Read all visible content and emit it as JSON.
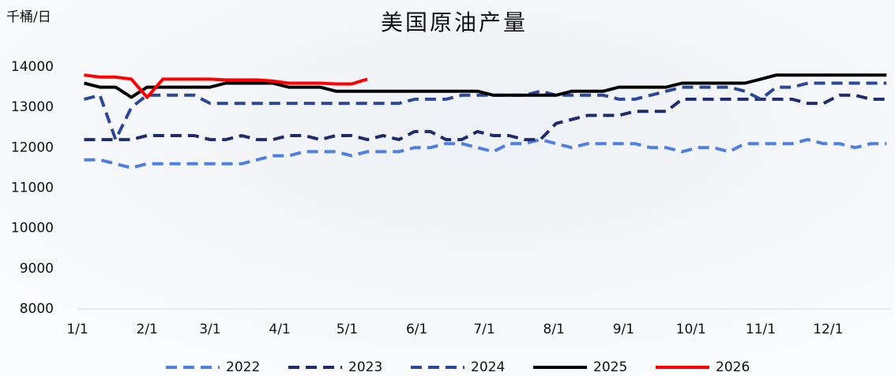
{
  "chart_data": {
    "type": "line",
    "title": "美国原油产量",
    "y_label": "千桶/日",
    "x": [
      3,
      10,
      17,
      24,
      31,
      38,
      45,
      52,
      59,
      66,
      73,
      80,
      87,
      94,
      101,
      108,
      115,
      122,
      129,
      136,
      143,
      150,
      157,
      164,
      171,
      178,
      185,
      192,
      199,
      206,
      213,
      220,
      227,
      234,
      241,
      248,
      255,
      262,
      269,
      276,
      283,
      290,
      297,
      304,
      311,
      318,
      325,
      332,
      339,
      346,
      353,
      360
    ],
    "xlim": [
      0,
      362
    ],
    "xticks": [
      {
        "value": 0,
        "label": "1/1"
      },
      {
        "value": 31,
        "label": "2/1"
      },
      {
        "value": 59,
        "label": "3/1"
      },
      {
        "value": 90,
        "label": "4/1"
      },
      {
        "value": 120,
        "label": "5/1"
      },
      {
        "value": 151,
        "label": "6/1"
      },
      {
        "value": 181,
        "label": "7/1"
      },
      {
        "value": 212,
        "label": "8/1"
      },
      {
        "value": 243,
        "label": "9/1"
      },
      {
        "value": 273,
        "label": "10/1"
      },
      {
        "value": 304,
        "label": "11/1"
      },
      {
        "value": 334,
        "label": "12/1"
      }
    ],
    "ylim": [
      8000,
      14000
    ],
    "yticks": [
      8000,
      9000,
      10000,
      11000,
      12000,
      13000,
      14000
    ],
    "legend": "bottom",
    "series": [
      {
        "name": "2022",
        "color": "#4f7fdf",
        "line_style": "dashed",
        "values": [
          11700,
          11700,
          11600,
          11500,
          11600,
          11600,
          11600,
          11600,
          11600,
          11600,
          11600,
          11700,
          11800,
          11800,
          11900,
          11900,
          11900,
          11800,
          11900,
          11900,
          11900,
          12000,
          12000,
          12100,
          12100,
          12000,
          11900,
          12100,
          12100,
          12200,
          12100,
          12000,
          12100,
          12100,
          12100,
          12100,
          12000,
          12000,
          11900,
          12000,
          12000,
          11900,
          12100,
          12100,
          12100,
          12100,
          12200,
          12100,
          12100,
          12000,
          12100,
          12100
        ]
      },
      {
        "name": "2023",
        "color": "#1f2c6b",
        "line_style": "dashed",
        "values": [
          12200,
          12200,
          12200,
          12200,
          12300,
          12300,
          12300,
          12300,
          12200,
          12200,
          12300,
          12200,
          12200,
          12300,
          12300,
          12200,
          12300,
          12300,
          12200,
          12300,
          12200,
          12400,
          12400,
          12200,
          12200,
          12400,
          12300,
          12300,
          12200,
          12200,
          12600,
          12700,
          12800,
          12800,
          12800,
          12900,
          12900,
          12900,
          13200,
          13200,
          13200,
          13200,
          13200,
          13200,
          13200,
          13200,
          13100,
          13100,
          13300,
          13300,
          13200,
          13200
        ]
      },
      {
        "name": "2024",
        "color": "#2b4898",
        "line_style": "dashed",
        "values": [
          13200,
          13300,
          12200,
          13000,
          13300,
          13300,
          13300,
          13300,
          13100,
          13100,
          13100,
          13100,
          13100,
          13100,
          13100,
          13100,
          13100,
          13100,
          13100,
          13100,
          13100,
          13200,
          13200,
          13200,
          13300,
          13300,
          13300,
          13300,
          13300,
          13400,
          13300,
          13300,
          13300,
          13300,
          13200,
          13200,
          13300,
          13400,
          13500,
          13500,
          13500,
          13500,
          13400,
          13200,
          13500,
          13500,
          13600,
          13600,
          13600,
          13600,
          13600,
          13600
        ]
      },
      {
        "name": "2025",
        "color": "#000000",
        "line_style": "solid",
        "values": [
          13600,
          13500,
          13500,
          13250,
          13500,
          13500,
          13500,
          13500,
          13500,
          13600,
          13600,
          13600,
          13600,
          13500,
          13500,
          13500,
          13400,
          13400,
          13400,
          13400,
          13400,
          13400,
          13400,
          13400,
          13400,
          13400,
          13300,
          13300,
          13300,
          13300,
          13300,
          13400,
          13400,
          13400,
          13500,
          13500,
          13500,
          13500,
          13600,
          13600,
          13600,
          13600,
          13600,
          13700,
          13800,
          13800,
          13800,
          13800,
          13800,
          13800,
          13800,
          13800
        ]
      },
      {
        "name": "2026",
        "color": "#ff0000",
        "line_style": "solid",
        "values": [
          13800,
          13750,
          13750,
          13700,
          13250,
          13700,
          13700,
          13700,
          13700,
          13680,
          13680,
          13680,
          13650,
          13600,
          13600,
          13600,
          13580,
          13580,
          13700,
          null,
          null,
          null,
          null,
          null,
          null,
          null,
          null,
          null,
          null,
          null,
          null,
          null,
          null,
          null,
          null,
          null,
          null,
          null,
          null,
          null,
          null,
          null,
          null,
          null,
          null,
          null,
          null,
          null,
          null,
          null,
          null,
          null
        ]
      }
    ]
  }
}
